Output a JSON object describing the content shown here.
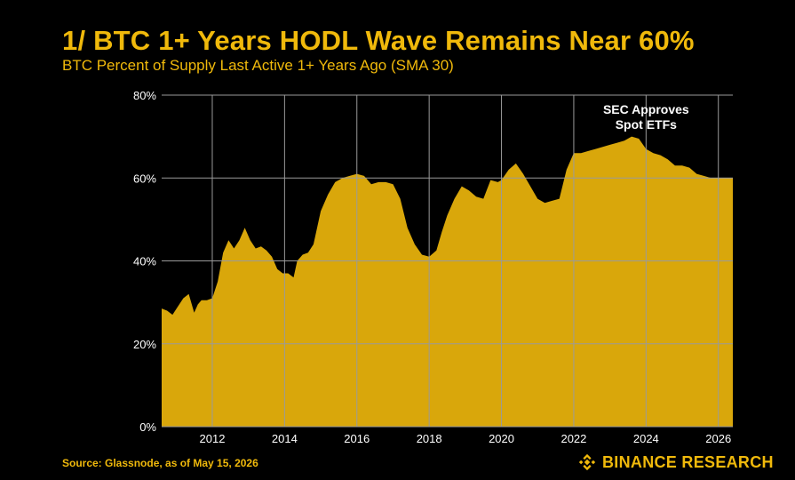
{
  "title": "1/ BTC 1+ Years HODL Wave Remains Near 60%",
  "subtitle": "BTC Percent of Supply Last Active 1+ Years Ago (SMA 30)",
  "footer": {
    "source": "Source: Glassnode, as of May 15, 2026",
    "brand": "BINANCE RESEARCH",
    "brand_icon": "binance-logo-icon"
  },
  "colors": {
    "background": "#000000",
    "accent": "#F0B90B",
    "area_fill": "#D9A70B",
    "grid": "#9a9a9a",
    "text": "#FFFFFF"
  },
  "chart_data": {
    "type": "area",
    "title": "1/ BTC 1+ Years HODL Wave Remains Near 60%",
    "subtitle": "BTC Percent of Supply Last Active 1+ Years Ago (SMA 30)",
    "xlabel": "",
    "ylabel": "",
    "x_ticks": [
      "2012",
      "2014",
      "2016",
      "2018",
      "2020",
      "2022",
      "2024",
      "2026"
    ],
    "y_ticks": [
      "0%",
      "20%",
      "40%",
      "60%",
      "80%"
    ],
    "xlim": [
      2010.6,
      2026.4
    ],
    "ylim": [
      0,
      80
    ],
    "grid": true,
    "grid_axis": "both",
    "annotations": [
      {
        "text": [
          "SEC Approves",
          "Spot ETFs"
        ],
        "x": 2024.0
      }
    ],
    "series": [
      {
        "x": [
          2010.6,
          2010.75,
          2010.9,
          2011.05,
          2011.2,
          2011.35,
          2011.5,
          2011.6,
          2011.7,
          2011.85,
          2012.0,
          2012.15,
          2012.3,
          2012.45,
          2012.6,
          2012.75,
          2012.9,
          2013.05,
          2013.2,
          2013.35,
          2013.5,
          2013.65,
          2013.8,
          2013.95,
          2014.1,
          2014.25,
          2014.35,
          2014.5,
          2014.65,
          2014.8,
          2015.0,
          2015.2,
          2015.4,
          2015.6,
          2015.8,
          2016.0,
          2016.2,
          2016.4,
          2016.6,
          2016.8,
          2017.0,
          2017.2,
          2017.4,
          2017.6,
          2017.8,
          2018.0,
          2018.2,
          2018.35,
          2018.5,
          2018.7,
          2018.9,
          2019.1,
          2019.3,
          2019.5,
          2019.7,
          2019.9,
          2020.0,
          2020.2,
          2020.4,
          2020.6,
          2020.8,
          2021.0,
          2021.2,
          2021.4,
          2021.6,
          2021.8,
          2022.0,
          2022.2,
          2022.4,
          2022.6,
          2022.8,
          2023.0,
          2023.2,
          2023.4,
          2023.6,
          2023.8,
          2024.0,
          2024.2,
          2024.4,
          2024.6,
          2024.8,
          2025.0,
          2025.2,
          2025.4,
          2025.6,
          2025.8,
          2026.0,
          2026.2,
          2026.4
        ],
        "y": [
          28.5,
          28,
          27,
          29,
          31,
          32,
          27.5,
          29.5,
          30.5,
          30.5,
          31,
          35,
          42,
          45,
          43,
          45,
          48,
          45,
          43,
          43.5,
          42.5,
          41,
          38,
          37,
          37,
          36,
          40,
          41.5,
          42,
          44,
          52,
          56,
          59,
          60,
          60.5,
          61,
          60.5,
          58.5,
          59,
          59,
          58.5,
          55,
          48,
          44,
          41.5,
          41,
          42.5,
          47,
          51,
          55,
          58,
          57,
          55.5,
          55,
          59.5,
          59,
          59.5,
          62,
          63.5,
          61,
          58,
          55,
          54,
          54.5,
          55,
          62,
          66,
          66,
          66.5,
          67,
          67.5,
          68,
          68.5,
          69,
          70,
          69.5,
          67,
          66,
          65.5,
          64.5,
          63,
          63,
          62.5,
          61,
          60.5,
          60,
          60,
          60,
          60
        ]
      }
    ]
  }
}
